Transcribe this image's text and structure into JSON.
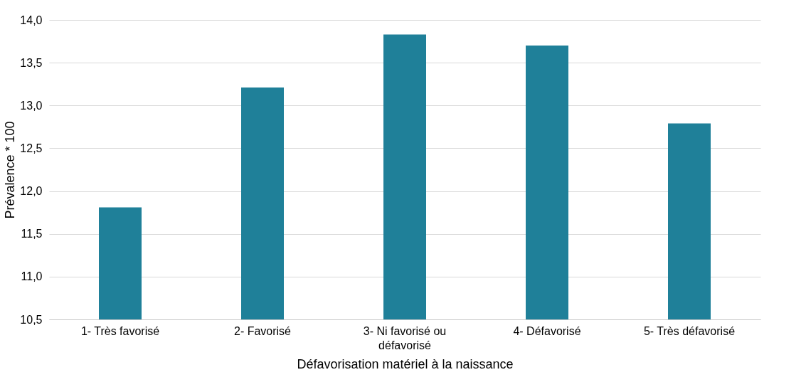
{
  "chart_data": {
    "type": "bar",
    "xlabel": "Défavorisation matériel à la naissance",
    "ylabel": "Prévalence * 100",
    "categories": [
      "1- Très  favorisé",
      "2- Favorisé",
      "3- Ni favorisé ou défavorisé",
      "4- Défavorisé",
      "5- Très défavorisé"
    ],
    "values": [
      11.81,
      13.21,
      13.83,
      13.7,
      12.79
    ],
    "color": "#1f8099",
    "ylim": [
      10.5,
      14.0
    ],
    "yticks": [
      {
        "value": 10.5,
        "label": "10,5"
      },
      {
        "value": 11,
        "label": "11,0"
      },
      {
        "value": 11.5,
        "label": "11,5"
      },
      {
        "value": 12,
        "label": "12,0"
      },
      {
        "value": 12.5,
        "label": "12,5"
      },
      {
        "value": 13,
        "label": "13,0"
      },
      {
        "value": 13.5,
        "label": "13,5"
      },
      {
        "value": 14,
        "label": "14,0"
      }
    ],
    "grid": "y"
  }
}
